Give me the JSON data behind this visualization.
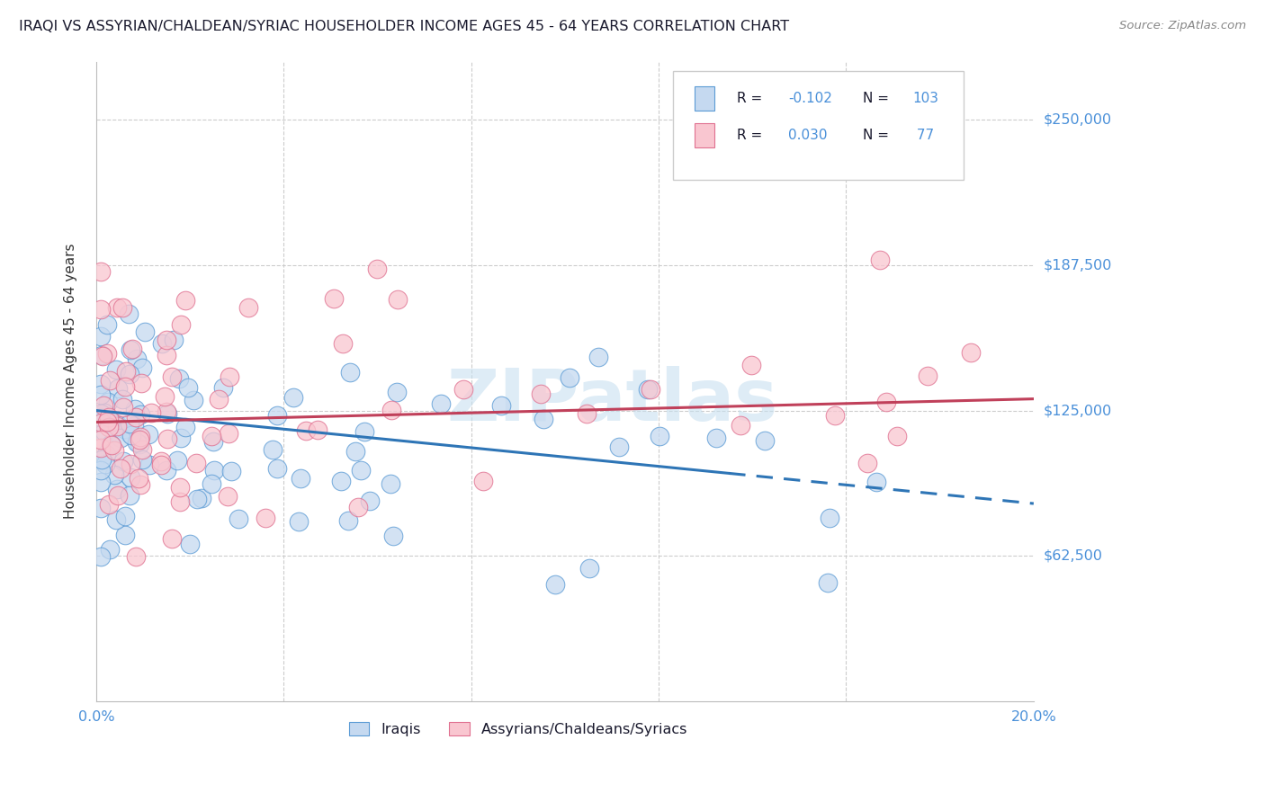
{
  "title": "IRAQI VS ASSYRIAN/CHALDEAN/SYRIAC HOUSEHOLDER INCOME AGES 45 - 64 YEARS CORRELATION CHART",
  "source": "Source: ZipAtlas.com",
  "ylabel": "Householder Income Ages 45 - 64 years",
  "xlim": [
    0.0,
    0.2
  ],
  "ylim": [
    0,
    275000
  ],
  "yticks": [
    0,
    62500,
    125000,
    187500,
    250000
  ],
  "ytick_labels": [
    "",
    "$62,500",
    "$125,000",
    "$187,500",
    "$250,000"
  ],
  "xticks": [
    0.0,
    0.04,
    0.08,
    0.12,
    0.16,
    0.2
  ],
  "legend_iraqis_label": "Iraqis",
  "legend_assyrians_label": "Assyrians/Chaldeans/Syriacs",
  "r_iraqis": -0.102,
  "n_iraqis": 103,
  "r_assyrians": 0.03,
  "n_assyrians": 77,
  "iraqis_fill_color": "#c5d9f0",
  "iraqis_edge_color": "#5b9bd5",
  "assyrians_fill_color": "#f9c6d0",
  "assyrians_edge_color": "#e07090",
  "iraqis_line_color": "#2e75b6",
  "assyrians_line_color": "#c0405a",
  "title_color": "#1a1a2e",
  "source_color": "#888888",
  "axis_label_color": "#333333",
  "tick_label_color": "#4a90d9",
  "legend_text_color": "#1a1a2e",
  "legend_value_color": "#4a90d9",
  "watermark_color": "#c8e0f0"
}
